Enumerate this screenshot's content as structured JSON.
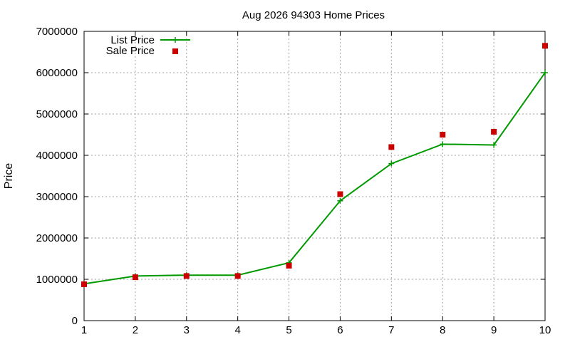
{
  "chart_data": {
    "type": "line",
    "title": "Aug 2026 94303 Home Prices",
    "xlabel": "",
    "ylabel": "Price",
    "x": [
      1,
      2,
      3,
      4,
      5,
      6,
      7,
      8,
      9,
      10
    ],
    "xlim": [
      1,
      10
    ],
    "ylim": [
      0,
      7000000
    ],
    "xticks": [
      "1",
      "2",
      "3",
      "4",
      "5",
      "6",
      "7",
      "8",
      "9",
      "10"
    ],
    "yticks": [
      "0",
      "1000000",
      "2000000",
      "3000000",
      "4000000",
      "5000000",
      "6000000",
      "7000000"
    ],
    "grid": true,
    "legend_position": "top-left",
    "series": [
      {
        "name": "List Price",
        "style": "line-with-plus-markers",
        "color": "#009900",
        "values": [
          890000,
          1080000,
          1100000,
          1100000,
          1400000,
          2900000,
          3800000,
          4270000,
          4250000,
          6000000
        ]
      },
      {
        "name": "Sale Price",
        "style": "square-markers",
        "color": "#cc0000",
        "values": [
          880000,
          1050000,
          1080000,
          1080000,
          1330000,
          3060000,
          4200000,
          4500000,
          4570000,
          6650000
        ]
      }
    ]
  }
}
